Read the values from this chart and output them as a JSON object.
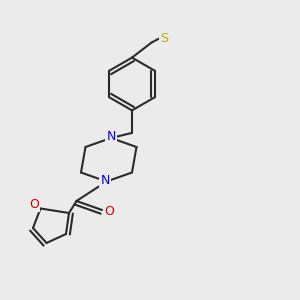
{
  "bg_color": "#ebebeb",
  "bond_color": "#2a2a2a",
  "N_color": "#0000dd",
  "O_color": "#cc0000",
  "S_color": "#bbaa00",
  "lw": 1.5,
  "dbl_sep": 0.013,
  "figsize": [
    3.0,
    3.0
  ],
  "dpi": 100,
  "xlim": [
    0,
    1
  ],
  "ylim": [
    0,
    1
  ],
  "font_size": 9
}
